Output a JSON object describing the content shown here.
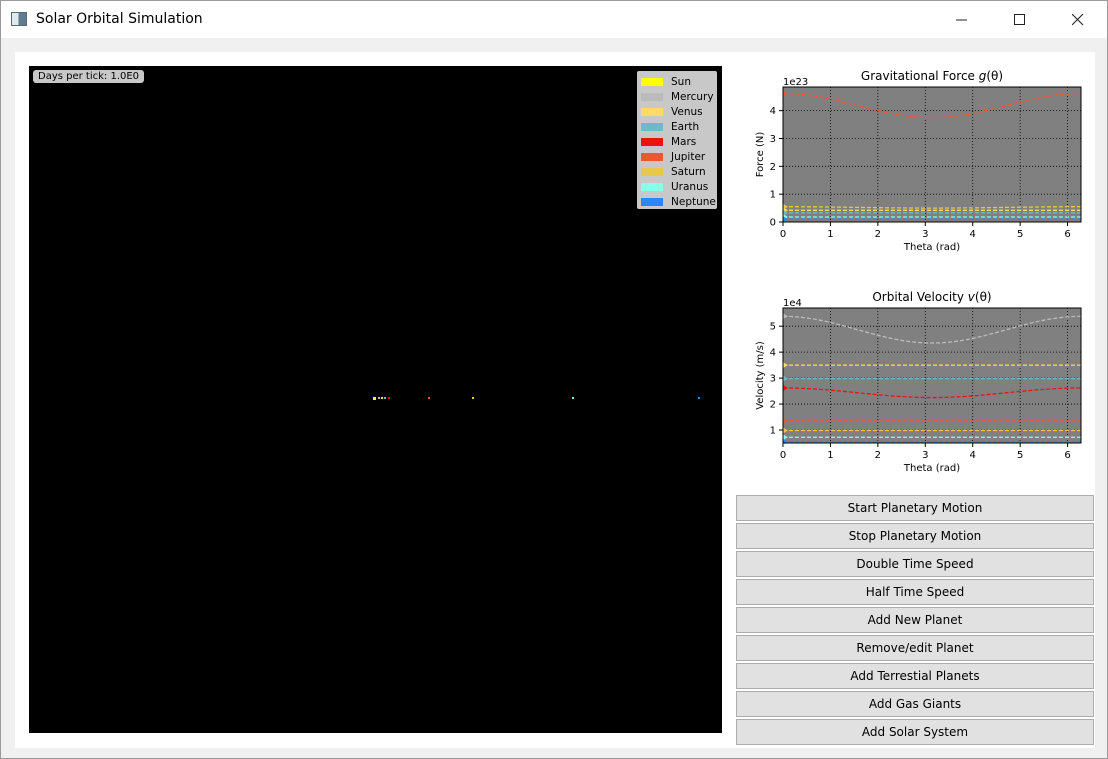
{
  "window": {
    "title": "Solar Orbital Simulation",
    "minimize_icon": "minimize-icon",
    "maximize_icon": "maximize-icon",
    "close_icon": "close-icon"
  },
  "simulation": {
    "days_per_tick": "Days per tick: 1.0E0",
    "legend": [
      {
        "label": "Sun",
        "color": "#ffff00"
      },
      {
        "label": "Mercury",
        "color": "#bbbbbb"
      },
      {
        "label": "Venus",
        "color": "#ffd966"
      },
      {
        "label": "Earth",
        "color": "#6fb8cc"
      },
      {
        "label": "Mars",
        "color": "#ee1111"
      },
      {
        "label": "Jupiter",
        "color": "#ee5533"
      },
      {
        "label": "Saturn",
        "color": "#e6c84a"
      },
      {
        "label": "Uranus",
        "color": "#88ffe8"
      },
      {
        "label": "Neptune",
        "color": "#2a88ff"
      }
    ]
  },
  "chart_data": [
    {
      "type": "line",
      "title": "Gravitational Force g(θ)",
      "title_plain": "Gravitational Force ",
      "title_func": "g",
      "title_arg": "(θ)",
      "xlabel": "Theta (rad)",
      "ylabel": "Force (N)",
      "offset_label": "1e23",
      "xlim": [
        0,
        6.283
      ],
      "ylim": [
        0,
        4.85
      ],
      "xticks": [
        0,
        1,
        2,
        3,
        4,
        5,
        6
      ],
      "yticks": [
        0,
        1,
        2,
        3,
        4
      ],
      "grid": true,
      "series": [
        {
          "color": "#ee5533",
          "x": [
            0,
            1.57,
            3.14,
            4.71,
            6.283
          ],
          "values": [
            4.62,
            4.25,
            3.75,
            4.2,
            4.62
          ]
        },
        {
          "color": "#e6c84a",
          "x": [
            0,
            1.57,
            3.14,
            4.71,
            6.283
          ],
          "values": [
            0.55,
            0.53,
            0.5,
            0.53,
            0.55
          ]
        },
        {
          "color": "#ffd966",
          "x": [
            0,
            6.283
          ],
          "values": [
            0.42,
            0.42
          ]
        },
        {
          "color": "#6fb8cc",
          "x": [
            0,
            6.283
          ],
          "values": [
            0.33,
            0.33
          ]
        },
        {
          "color": "#88ffe8",
          "x": [
            0,
            6.283
          ],
          "values": [
            0.18,
            0.18
          ]
        },
        {
          "color": "#2a88ff",
          "x": [
            0,
            6.283
          ],
          "values": [
            0.1,
            0.1
          ]
        }
      ]
    },
    {
      "type": "line",
      "title": "Orbital Velocity v(θ)",
      "title_plain": "Orbital Velocity ",
      "title_func": "v",
      "title_arg": "(θ)",
      "xlabel": "Theta (rad)",
      "ylabel": "Velocity (m/s)",
      "offset_label": "1e4",
      "xlim": [
        0,
        6.283
      ],
      "ylim": [
        0.5,
        5.7
      ],
      "xticks": [
        0,
        1,
        2,
        3,
        4,
        5,
        6
      ],
      "yticks": [
        1,
        2,
        3,
        4,
        5
      ],
      "grid": true,
      "series": [
        {
          "color": "#bbbbbb",
          "x": [
            0,
            1.57,
            3.14,
            4.71,
            6.283
          ],
          "values": [
            5.38,
            4.85,
            4.35,
            4.85,
            5.38
          ]
        },
        {
          "color": "#ffd966",
          "x": [
            0,
            6.283
          ],
          "values": [
            3.5,
            3.5
          ]
        },
        {
          "color": "#6fb8cc",
          "x": [
            0,
            6.283
          ],
          "values": [
            2.98,
            2.98
          ]
        },
        {
          "color": "#ee1111",
          "x": [
            0,
            1.57,
            3.14,
            4.71,
            6.283
          ],
          "values": [
            2.62,
            2.45,
            2.25,
            2.45,
            2.62
          ]
        },
        {
          "color": "#ee5533",
          "x": [
            0,
            6.283
          ],
          "values": [
            1.35,
            1.35
          ]
        },
        {
          "color": "#e6c84a",
          "x": [
            0,
            6.283
          ],
          "values": [
            0.98,
            0.98
          ]
        },
        {
          "color": "#88ffe8",
          "x": [
            0,
            6.283
          ],
          "values": [
            0.72,
            0.72
          ]
        },
        {
          "color": "#2a88ff",
          "x": [
            0,
            6.283
          ],
          "values": [
            0.55,
            0.55
          ]
        }
      ]
    }
  ],
  "controls": {
    "buttons": [
      "Start Planetary Motion",
      "Stop Planetary Motion",
      "Double Time Speed",
      "Half Time Speed",
      "Add New Planet",
      "Remove/edit Planet",
      "Add Terrestial Planets",
      "Add Gas Giants",
      "Add Solar System"
    ]
  }
}
